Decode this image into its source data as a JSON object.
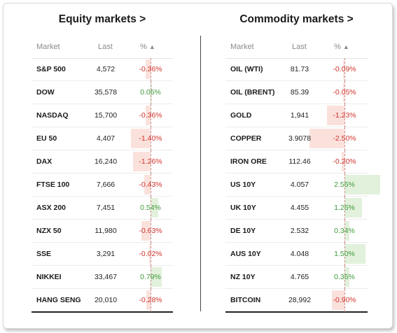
{
  "equity": {
    "title": "Equity markets >",
    "headers": {
      "market": "Market",
      "last": "Last",
      "pct": "% ",
      "sort": "▲"
    },
    "rows": [
      {
        "name": "S&P 500",
        "last": "4,572",
        "pct": "-0.36%",
        "value": -0.36
      },
      {
        "name": "DOW",
        "last": "35,578",
        "pct": "0.05%",
        "value": 0.05
      },
      {
        "name": "NASDAQ",
        "last": "15,700",
        "pct": "-0.36%",
        "value": -0.36
      },
      {
        "name": "EU 50",
        "last": "4,407",
        "pct": "-1.40%",
        "value": -1.4
      },
      {
        "name": "DAX",
        "last": "16,240",
        "pct": "-1.26%",
        "value": -1.26
      },
      {
        "name": "FTSE 100",
        "last": "7,666",
        "pct": "-0.43%",
        "value": -0.43
      },
      {
        "name": "ASX 200",
        "last": "7,451",
        "pct": "0.54%",
        "value": 0.54
      },
      {
        "name": "NZX 50",
        "last": "11,980",
        "pct": "-0.63%",
        "value": -0.63
      },
      {
        "name": "SSE",
        "last": "3,291",
        "pct": "-0.02%",
        "value": -0.02
      },
      {
        "name": "NIKKEI",
        "last": "33,467",
        "pct": "0.79%",
        "value": 0.79
      },
      {
        "name": "HANG SENG",
        "last": "20,010",
        "pct": "-0.28%",
        "value": -0.28
      }
    ]
  },
  "commodity": {
    "title": "Commodity markets >",
    "headers": {
      "market": "Market",
      "last": "Last",
      "pct": "% ",
      "sort": "▲"
    },
    "rows": [
      {
        "name": "OIL (WTI)",
        "last": "81.73",
        "pct": "-0.09%",
        "value": -0.09
      },
      {
        "name": "OIL (BRENT)",
        "last": "85.39",
        "pct": "-0.05%",
        "value": -0.05
      },
      {
        "name": "GOLD",
        "last": "1,941",
        "pct": "-1.23%",
        "value": -1.23
      },
      {
        "name": "COPPER",
        "last": "3.9078",
        "pct": "-2.50%",
        "value": -2.5
      },
      {
        "name": "IRON ORE",
        "last": "112.46",
        "pct": "-0.20%",
        "value": -0.2
      },
      {
        "name": "US 10Y",
        "last": "4.057",
        "pct": "2.55%",
        "value": 2.55
      },
      {
        "name": "UK 10Y",
        "last": "4.455",
        "pct": "1.25%",
        "value": 1.25
      },
      {
        "name": "DE 10Y",
        "last": "2.532",
        "pct": "0.34%",
        "value": 0.34
      },
      {
        "name": "AUS 10Y",
        "last": "4.048",
        "pct": "1.50%",
        "value": 1.5
      },
      {
        "name": "NZ 10Y",
        "last": "4.765",
        "pct": "0.35%",
        "value": 0.35
      },
      {
        "name": "BITCOIN",
        "last": "28,992",
        "pct": "-0.90%",
        "value": -0.9
      }
    ]
  },
  "colors": {
    "negative": "#d0342c",
    "positive": "#3f9a3a",
    "negative_bar": "#fbe1dc",
    "positive_bar": "#e2f1dc"
  }
}
